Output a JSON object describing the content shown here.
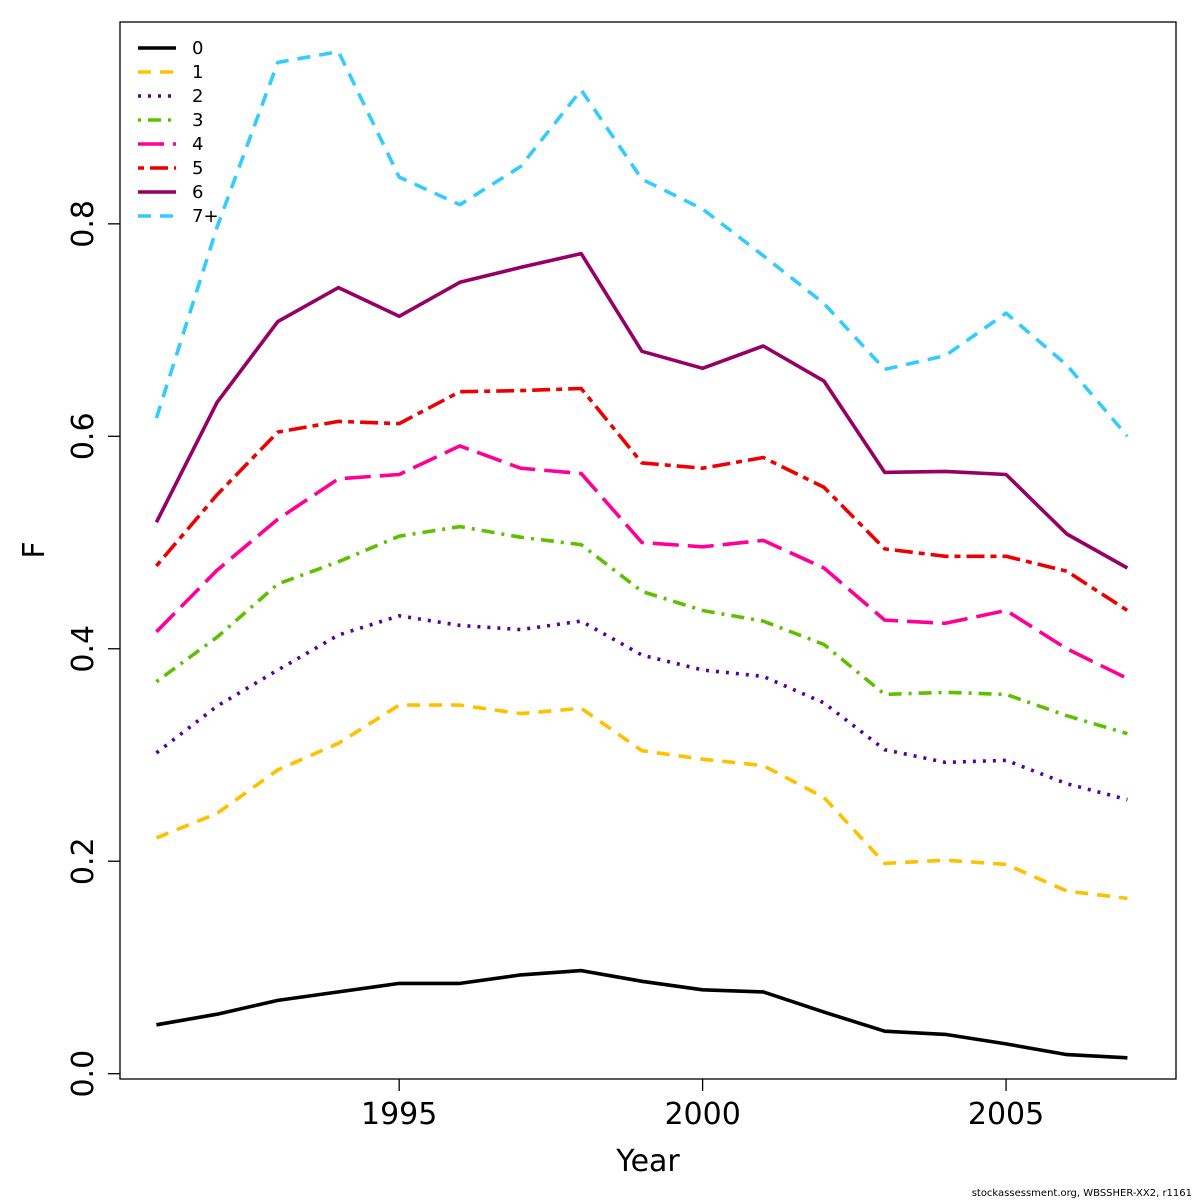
{
  "chart_data": {
    "type": "line",
    "title": "",
    "xlabel": "Year",
    "ylabel": "F",
    "xlim": [
      1990.4,
      2007.8
    ],
    "ylim": [
      -0.005,
      0.99
    ],
    "x_ticks": [
      "1995",
      "2000",
      "2005"
    ],
    "y_ticks": [
      "0.0",
      "0.2",
      "0.4",
      "0.6",
      "0.8"
    ],
    "grid": false,
    "legend": "top-left",
    "x": [
      1991,
      1992,
      1993,
      1994,
      1995,
      1996,
      1997,
      1998,
      1999,
      2000,
      2001,
      2002,
      2003,
      2004,
      2005,
      2006,
      2007
    ],
    "series": [
      {
        "name": "0",
        "color": "#000000",
        "dash": "solid",
        "values": [
          0.046,
          0.056,
          0.069,
          0.077,
          0.085,
          0.085,
          0.093,
          0.097,
          0.087,
          0.079,
          0.077,
          0.058,
          0.04,
          0.037,
          0.028,
          0.018,
          0.015
        ]
      },
      {
        "name": "1",
        "color": "#FFC000",
        "dash": "dashed",
        "values": [
          0.222,
          0.245,
          0.286,
          0.311,
          0.347,
          0.347,
          0.339,
          0.344,
          0.304,
          0.296,
          0.29,
          0.26,
          0.198,
          0.201,
          0.197,
          0.172,
          0.165
        ]
      },
      {
        "name": "2",
        "color": "#5B0096",
        "dash": "dotted",
        "values": [
          0.302,
          0.346,
          0.38,
          0.413,
          0.431,
          0.422,
          0.418,
          0.426,
          0.394,
          0.38,
          0.374,
          0.349,
          0.305,
          0.293,
          0.295,
          0.273,
          0.258
        ]
      },
      {
        "name": "3",
        "color": "#5DC000",
        "dash": "dotdash",
        "values": [
          0.369,
          0.411,
          0.461,
          0.482,
          0.506,
          0.515,
          0.505,
          0.498,
          0.454,
          0.436,
          0.426,
          0.404,
          0.357,
          0.359,
          0.357,
          0.337,
          0.32
        ]
      },
      {
        "name": "4",
        "color": "#FF0096",
        "dash": "longdash",
        "values": [
          0.416,
          0.474,
          0.522,
          0.56,
          0.564,
          0.591,
          0.57,
          0.565,
          0.5,
          0.496,
          0.502,
          0.476,
          0.427,
          0.424,
          0.436,
          0.4,
          0.372
        ]
      },
      {
        "name": "5",
        "color": "#EE0000",
        "dash": "twodash",
        "values": [
          0.478,
          0.545,
          0.604,
          0.614,
          0.612,
          0.642,
          0.643,
          0.645,
          0.575,
          0.57,
          0.58,
          0.552,
          0.494,
          0.487,
          0.487,
          0.473,
          0.436
        ]
      },
      {
        "name": "6",
        "color": "#960064",
        "dash": "solid",
        "values": [
          0.519,
          0.632,
          0.708,
          0.74,
          0.713,
          0.745,
          0.759,
          0.772,
          0.68,
          0.664,
          0.685,
          0.652,
          0.566,
          0.567,
          0.564,
          0.508,
          0.476
        ]
      },
      {
        "name": "7+",
        "color": "#33CCFF",
        "dash": "dashed",
        "values": [
          0.617,
          0.797,
          0.952,
          0.962,
          0.844,
          0.818,
          0.854,
          0.926,
          0.842,
          0.814,
          0.77,
          0.725,
          0.663,
          0.676,
          0.716,
          0.667,
          0.6
        ]
      }
    ]
  },
  "footer": "stockassessment.org, WBSSHER-XX2, r1161"
}
